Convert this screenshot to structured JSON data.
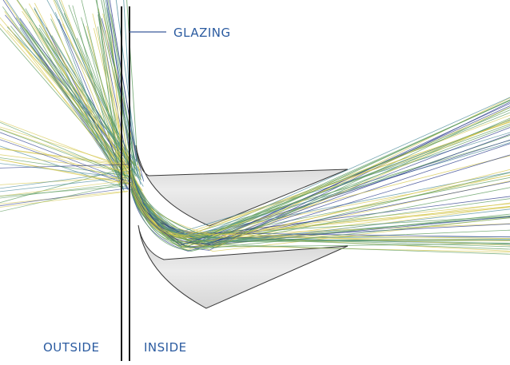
{
  "labels": {
    "glazing": "GLAZING",
    "outside": "OUTSIDE",
    "inside": "INSIDE"
  },
  "colors": {
    "background": "#ffffff",
    "label_text": "#2b5ba0",
    "glazing_lines": "#1a1a1a",
    "leader_line": "#3a5a9a",
    "shelf_fill": "#dcdcdc",
    "shelf_edge": "#3a3a3a",
    "ray_yellow": "#d4c64a",
    "ray_green": "#5a9a5a",
    "ray_teal": "#4a8a9a",
    "ray_blue": "#2a3a8a"
  }
}
